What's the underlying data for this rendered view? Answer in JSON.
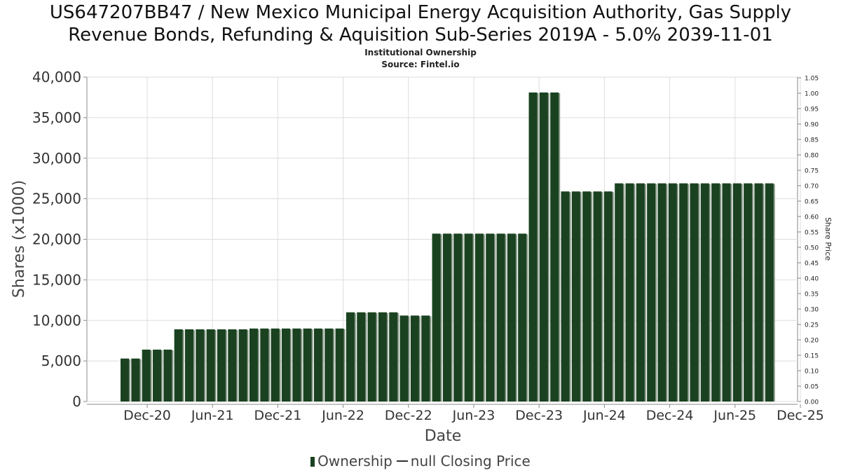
{
  "header": {
    "title_line1": "US647207BB47 / New Mexico Municipal Energy Acquisition Authority, Gas Supply",
    "title_line2": "Revenue Bonds, Refunding & Aquisition Sub-Series 2019A - 5.0% 2039-11-01",
    "subtitle_line1": "Institutional Ownership",
    "subtitle_line2": "Source: Fintel.io"
  },
  "legend": {
    "ownership_label": "Ownership",
    "price_label": "null Closing Price"
  },
  "colors": {
    "bar": "#1a4220",
    "bar_shadow": "#8a9a8a",
    "grid": "#dddddd",
    "axis": "#888888"
  },
  "chart_data": {
    "type": "bar",
    "title": "US647207BB47 / New Mexico Municipal Energy Acquisition Authority, Gas Supply Revenue Bonds, Refunding & Aquisition Sub-Series 2019A - 5.0% 2039-11-01",
    "xlabel": "Date",
    "ylabel": "Shares (x1000)",
    "y2label": "Share Price",
    "ylim": [
      0,
      40000
    ],
    "y2lim": [
      0,
      1.05
    ],
    "grid": true,
    "legend_position": "bottom",
    "x_ticks": [
      "Dec-20",
      "Jun-21",
      "Dec-21",
      "Jun-22",
      "Dec-22",
      "Jun-23",
      "Dec-23",
      "Jun-24",
      "Dec-24",
      "Jun-25",
      "Dec-25"
    ],
    "y_ticks": [
      "0",
      "5,000",
      "10,000",
      "15,000",
      "20,000",
      "25,000",
      "30,000",
      "35,000",
      "40,000"
    ],
    "y2_ticks": [
      "0.00",
      "0.05",
      "0.10",
      "0.15",
      "0.20",
      "0.25",
      "0.30",
      "0.35",
      "0.40",
      "0.45",
      "0.50",
      "0.55",
      "0.60",
      "0.65",
      "0.70",
      "0.75",
      "0.80",
      "0.85",
      "0.90",
      "0.95",
      "1.00",
      "1.05"
    ],
    "series": [
      {
        "name": "Ownership",
        "values": [
          5300,
          5300,
          6400,
          6400,
          6400,
          8900,
          8900,
          8900,
          8900,
          8900,
          8900,
          8900,
          9000,
          9000,
          9000,
          9000,
          9000,
          9000,
          9000,
          9000,
          9000,
          11000,
          11000,
          11000,
          11000,
          11000,
          10600,
          10600,
          10600,
          20700,
          20700,
          20700,
          20700,
          20700,
          20700,
          20700,
          20700,
          20700,
          38100,
          38100,
          38100,
          25900,
          25900,
          25900,
          25900,
          25900,
          26900,
          26900,
          26900,
          26900,
          26900,
          26900,
          26900,
          26900,
          26900,
          26900,
          26900,
          26900,
          26900,
          26900,
          26900
        ]
      }
    ]
  }
}
